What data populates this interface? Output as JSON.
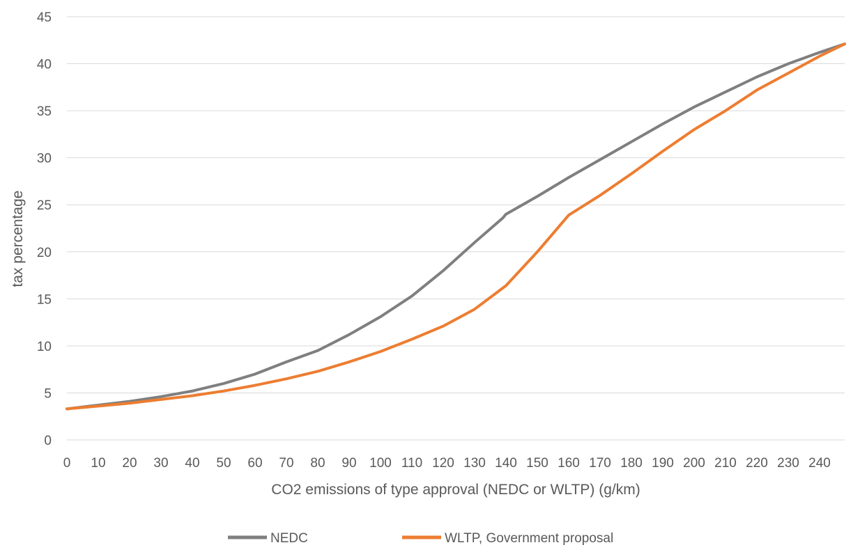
{
  "chart_data": {
    "type": "line",
    "title": "",
    "xlabel": "CO2 emissions of type approval (NEDC or WLTP) (g/km)",
    "ylabel": "tax percentage",
    "xlim": [
      0,
      248
    ],
    "ylim": [
      0,
      45
    ],
    "grid": true,
    "legend_position": "bottom",
    "x_ticks": [
      0,
      10,
      20,
      30,
      40,
      50,
      60,
      70,
      80,
      90,
      100,
      110,
      120,
      130,
      140,
      150,
      160,
      170,
      180,
      190,
      200,
      210,
      220,
      230,
      240
    ],
    "y_ticks": [
      0,
      5,
      10,
      15,
      20,
      25,
      30,
      35,
      40,
      45
    ],
    "series": [
      {
        "name": "NEDC",
        "color": "#7f7f7f",
        "x": [
          0,
          10,
          20,
          30,
          40,
          50,
          60,
          70,
          80,
          90,
          100,
          110,
          120,
          130,
          139,
          140,
          150,
          160,
          170,
          180,
          190,
          200,
          210,
          220,
          230,
          240,
          248
        ],
        "values": [
          3.3,
          3.7,
          4.1,
          4.6,
          5.2,
          6.0,
          7.0,
          8.3,
          9.5,
          11.2,
          13.1,
          15.3,
          18.0,
          21.0,
          23.6,
          24.0,
          25.9,
          27.9,
          29.8,
          31.7,
          33.6,
          35.4,
          37.0,
          38.6,
          40.0,
          41.2,
          42.1
        ]
      },
      {
        "name": "WLTP, Government proposal",
        "color": "#ed7d31",
        "x": [
          0,
          10,
          20,
          30,
          40,
          50,
          60,
          70,
          80,
          90,
          100,
          110,
          120,
          130,
          140,
          150,
          160,
          170,
          180,
          190,
          200,
          210,
          220,
          230,
          240,
          248
        ],
        "values": [
          3.3,
          3.6,
          3.9,
          4.3,
          4.7,
          5.2,
          5.8,
          6.5,
          7.3,
          8.3,
          9.4,
          10.7,
          12.1,
          13.9,
          16.4,
          20.0,
          23.9,
          26.0,
          28.3,
          30.7,
          33.0,
          35.0,
          37.2,
          39.0,
          40.8,
          42.1
        ]
      }
    ]
  }
}
